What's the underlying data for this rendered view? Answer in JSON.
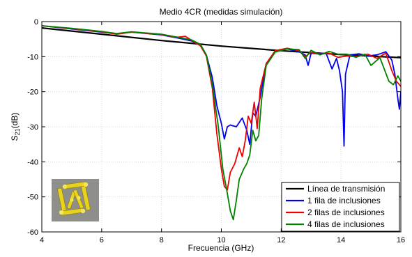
{
  "chart_data": {
    "type": "line",
    "title": "Medio 4CR (medidas simulación)",
    "xlabel": "Frecuencia (GHz)",
    "ylabel": {
      "main": "S",
      "sub": "21",
      "rest": "(dB)"
    },
    "xlim": [
      4,
      16
    ],
    "ylim": [
      -60,
      0
    ],
    "xticks": [
      4,
      6,
      8,
      10,
      12,
      14,
      16
    ],
    "yticks": [
      0,
      -10,
      -20,
      -30,
      -40,
      -50,
      -60
    ],
    "grid": true,
    "legend_position": "bottom-right",
    "inset_image": "split-ring-resonator-cube-icon",
    "series": [
      {
        "name": "Línea de transmisión",
        "color": "#000000",
        "x": [
          4,
          6,
          8,
          10,
          12,
          14,
          16
        ],
        "y": [
          -1.8,
          -3.6,
          -5.4,
          -7.0,
          -8.3,
          -9.4,
          -10.3
        ]
      },
      {
        "name": "1 fila de inclusiones",
        "color": "#0000ee",
        "x": [
          4,
          5,
          6,
          6.5,
          7,
          8,
          8.5,
          9,
          9.3,
          9.5,
          9.7,
          9.85,
          10.0,
          10.1,
          10.2,
          10.3,
          10.5,
          10.7,
          10.85,
          10.95,
          11.05,
          11.15,
          11.3,
          11.5,
          11.8,
          12.2,
          12.6,
          12.8,
          12.9,
          13.0,
          13.2,
          13.5,
          13.7,
          13.85,
          13.95,
          14.05,
          14.1,
          14.15,
          14.3,
          14.6,
          14.9,
          15.2,
          15.5,
          15.7,
          15.8,
          15.9,
          15.95,
          16.0
        ],
        "y": [
          -1.2,
          -2.1,
          -3.0,
          -3.5,
          -3.0,
          -3.8,
          -4.6,
          -5.5,
          -6.8,
          -9.5,
          -16,
          -24,
          -29,
          -33.5,
          -30,
          -29.5,
          -30,
          -27.5,
          -31,
          -35,
          -26,
          -27,
          -21.5,
          -12,
          -8.4,
          -7.8,
          -8.6,
          -9.5,
          -12.5,
          -9.0,
          -9.2,
          -9.0,
          -13.5,
          -10.5,
          -14,
          -20,
          -35.5,
          -15,
          -9.5,
          -9.2,
          -9.8,
          -9.5,
          -8.6,
          -11,
          -15,
          -22,
          -25,
          -20
        ]
      },
      {
        "name": "2 filas de inclusiones",
        "color": "#ee0000",
        "x": [
          4,
          5,
          6,
          6.5,
          7,
          8,
          8.5,
          8.8,
          9,
          9.3,
          9.5,
          9.7,
          9.85,
          10.0,
          10.1,
          10.2,
          10.3,
          10.45,
          10.6,
          10.7,
          10.8,
          10.9,
          11.0,
          11.1,
          11.2,
          11.3,
          11.5,
          11.8,
          12.2,
          12.6,
          12.8,
          13.0,
          13.3,
          13.6,
          13.9,
          14.2,
          14.5,
          14.9,
          15.2,
          15.5,
          15.7,
          15.85,
          16.0
        ],
        "y": [
          -1.2,
          -2.0,
          -2.9,
          -3.6,
          -3.0,
          -3.7,
          -4.5,
          -4.2,
          -5.3,
          -6.9,
          -9.8,
          -19,
          -32,
          -42,
          -47,
          -48,
          -43,
          -40.5,
          -36,
          -38.5,
          -34,
          -27,
          -29,
          -23,
          -30.5,
          -19,
          -12,
          -8.3,
          -7.6,
          -8.3,
          -10,
          -8.8,
          -9.3,
          -9.0,
          -10.2,
          -9.8,
          -10.0,
          -9.3,
          -10.5,
          -9.0,
          -14,
          -17,
          -18.5
        ]
      },
      {
        "name": "4 filas de inclusiones",
        "color": "#008000",
        "x": [
          4,
          5,
          6,
          6.5,
          7,
          8,
          8.5,
          9,
          9.3,
          9.5,
          9.7,
          9.9,
          10.05,
          10.2,
          10.3,
          10.4,
          10.5,
          10.6,
          10.75,
          10.85,
          10.95,
          11.05,
          11.15,
          11.25,
          11.35,
          11.5,
          11.8,
          12.2,
          12.6,
          12.8,
          13.0,
          13.3,
          13.6,
          13.9,
          14.2,
          14.5,
          14.8,
          15.0,
          15.3,
          15.6,
          15.75,
          15.9,
          16.0
        ],
        "y": [
          -1.2,
          -1.9,
          -2.8,
          -3.4,
          -2.9,
          -3.6,
          -4.4,
          -5.2,
          -6.5,
          -9.5,
          -18,
          -30,
          -42,
          -49,
          -54,
          -56.5,
          -51,
          -45,
          -42,
          -40.5,
          -38,
          -31,
          -34,
          -32.5,
          -22,
          -12.5,
          -8.7,
          -7.8,
          -8.0,
          -10.5,
          -8.2,
          -9.5,
          -8.5,
          -9.3,
          -9.3,
          -10.2,
          -9.3,
          -12.5,
          -10.3,
          -17,
          -18,
          -15.5,
          -17
        ]
      }
    ]
  }
}
